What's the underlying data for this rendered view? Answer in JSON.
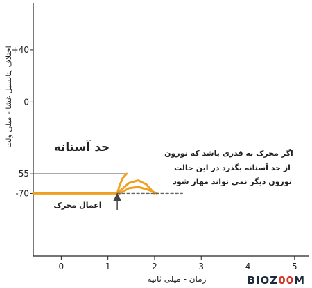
{
  "chart_data": {
    "type": "line",
    "xlabel": "زمان - میلی ثانیه",
    "ylabel": "اختلاف پتانسیل غشا - میلی ولت",
    "x_ticks": [
      0,
      1,
      2,
      3,
      4,
      5
    ],
    "y_ticks": [
      "+40",
      "0",
      "-55",
      "-70"
    ],
    "y_tick_values": [
      40,
      0,
      -55,
      -70
    ],
    "xlim": [
      -0.6,
      5.3
    ],
    "ylim": [
      -118,
      76
    ],
    "grid": false,
    "series": [
      {
        "style": "solid",
        "color": "#f0a020",
        "x": [
          -0.6,
          0.6,
          1.2,
          1.25,
          1.32,
          1.4
        ],
        "y": [
          -70,
          -70,
          -70,
          -64,
          -58,
          -55
        ]
      },
      {
        "style": "solid",
        "color": "#f0a020",
        "x": [
          1.2,
          1.45,
          1.65,
          1.82,
          2.0
        ],
        "y": [
          -70,
          -62,
          -60,
          -63,
          -70
        ]
      },
      {
        "style": "solid",
        "color": "#f0a020",
        "x": [
          1.25,
          1.45,
          1.65,
          1.85,
          2.05
        ],
        "y": [
          -70,
          -66,
          -65,
          -67,
          -70
        ]
      },
      {
        "style": "dashed",
        "color": "#666666",
        "x": [
          1.2,
          2.6
        ],
        "y": [
          -70,
          -70
        ]
      }
    ],
    "reference_lines": [
      {
        "y": -55,
        "x_from": -0.6,
        "x_to": 1.4,
        "color": "#555555"
      }
    ],
    "annotations": {
      "threshold_label": "حد آستانه",
      "stimulus_label": "اعمال محرک",
      "note_lines": [
        "اگر محرک به قدری باشد که نورون",
        "از حد آستانه بگذرد در این حالت",
        "نورون دیگر نمی تواند مهار شود"
      ],
      "stimulus_x": 1.2
    }
  },
  "brand": {
    "logo_left": "BIOZ",
    "logo_accent": "00",
    "logo_right": "M"
  }
}
